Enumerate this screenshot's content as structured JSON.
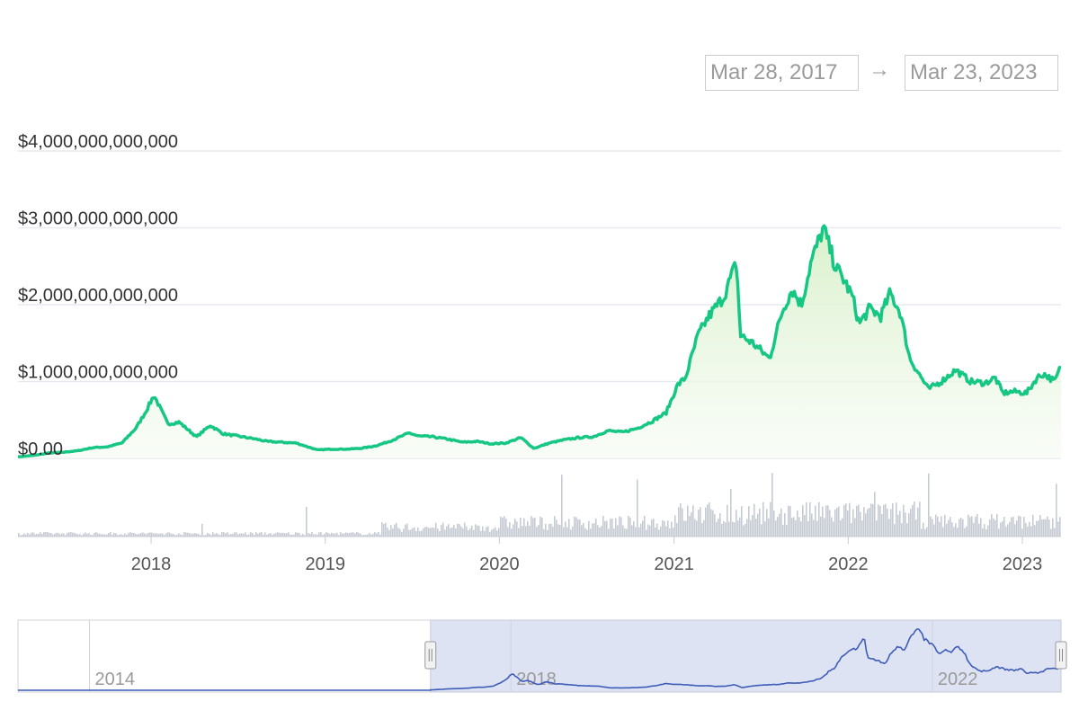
{
  "range_selector": {
    "start_date": "Mar 28, 2017",
    "arrow": "→",
    "end_date": "Mar 23, 2023"
  },
  "colors": {
    "price_line": "#16c784",
    "area_fill": "#e8f6df",
    "volume": "#c6cad3",
    "navigator_line": "#3e5cb8",
    "navigator_mask": "#dde3f2",
    "gridline": "#e6eaf0"
  },
  "chart_data": {
    "type": "area",
    "ylabel": "",
    "y_ticks": [
      "$0.00",
      "$1,000,000,000,000",
      "$2,000,000,000,000",
      "$3,000,000,000,000",
      "$4,000,000,000,000"
    ],
    "y_tick_values": [
      0,
      1000000000000,
      2000000000000,
      3000000000000,
      4000000000000
    ],
    "ylim": [
      0,
      4000000000000
    ],
    "xlim": [
      "2017-03-28",
      "2023-03-23"
    ],
    "x_ticks": [
      "2018",
      "2019",
      "2020",
      "2021",
      "2022",
      "2023"
    ],
    "grid": true,
    "series": [
      {
        "x": [
          "2017-03-28",
          "2017-05-01",
          "2017-06-01",
          "2017-07-01",
          "2017-08-01",
          "2017-09-01",
          "2017-10-01",
          "2017-11-01",
          "2017-12-01",
          "2017-12-20",
          "2018-01-07",
          "2018-02-05",
          "2018-03-01",
          "2018-04-06",
          "2018-05-05",
          "2018-06-01",
          "2018-07-01",
          "2018-08-01",
          "2018-09-01",
          "2018-10-01",
          "2018-11-01",
          "2018-12-15",
          "2019-01-15",
          "2019-02-15",
          "2019-03-15",
          "2019-04-15",
          "2019-05-15",
          "2019-06-26",
          "2019-07-15",
          "2019-08-15",
          "2019-09-15",
          "2019-10-15",
          "2019-11-15",
          "2019-12-15",
          "2020-01-15",
          "2020-02-15",
          "2020-03-13",
          "2020-04-15",
          "2020-05-15",
          "2020-06-15",
          "2020-07-15",
          "2020-08-15",
          "2020-09-15",
          "2020-10-15",
          "2020-11-15",
          "2020-12-15",
          "2021-01-08",
          "2021-01-25",
          "2021-02-20",
          "2021-03-15",
          "2021-04-15",
          "2021-05-12",
          "2021-05-20",
          "2021-06-15",
          "2021-07-20",
          "2021-08-15",
          "2021-09-05",
          "2021-09-25",
          "2021-10-15",
          "2021-11-10",
          "2021-12-05",
          "2021-12-25",
          "2022-01-10",
          "2022-01-24",
          "2022-02-15",
          "2022-03-10",
          "2022-03-30",
          "2022-04-20",
          "2022-05-10",
          "2022-06-18",
          "2022-07-15",
          "2022-08-14",
          "2022-09-15",
          "2022-10-15",
          "2022-11-05",
          "2022-11-21",
          "2022-12-15",
          "2023-01-10",
          "2023-02-01",
          "2023-02-15",
          "2023-03-10",
          "2023-03-23"
        ],
        "values": [
          20000000000,
          40000000000,
          70000000000,
          80000000000,
          100000000000,
          140000000000,
          150000000000,
          200000000000,
          400000000000,
          600000000000,
          820000000000,
          450000000000,
          470000000000,
          280000000000,
          430000000000,
          320000000000,
          290000000000,
          260000000000,
          220000000000,
          210000000000,
          200000000000,
          110000000000,
          120000000000,
          120000000000,
          130000000000,
          160000000000,
          220000000000,
          330000000000,
          290000000000,
          280000000000,
          250000000000,
          210000000000,
          220000000000,
          190000000000,
          200000000000,
          270000000000,
          130000000000,
          200000000000,
          240000000000,
          270000000000,
          280000000000,
          360000000000,
          340000000000,
          390000000000,
          480000000000,
          590000000000,
          950000000000,
          1050000000000,
          1600000000000,
          1850000000000,
          2100000000000,
          2550000000000,
          1600000000000,
          1500000000000,
          1300000000000,
          1900000000000,
          2200000000000,
          2000000000000,
          2550000000000,
          3000000000000,
          2500000000000,
          2300000000000,
          2100000000000,
          1750000000000,
          1950000000000,
          1850000000000,
          2150000000000,
          1900000000000,
          1300000000000,
          900000000000,
          1000000000000,
          1150000000000,
          1000000000000,
          980000000000,
          1050000000000,
          850000000000,
          870000000000,
          850000000000,
          1050000000000,
          1100000000000,
          1000000000000,
          1200000000000
        ]
      }
    ],
    "navigator": {
      "x_ticks": [
        "2014",
        "2018",
        "2022"
      ]
    }
  }
}
